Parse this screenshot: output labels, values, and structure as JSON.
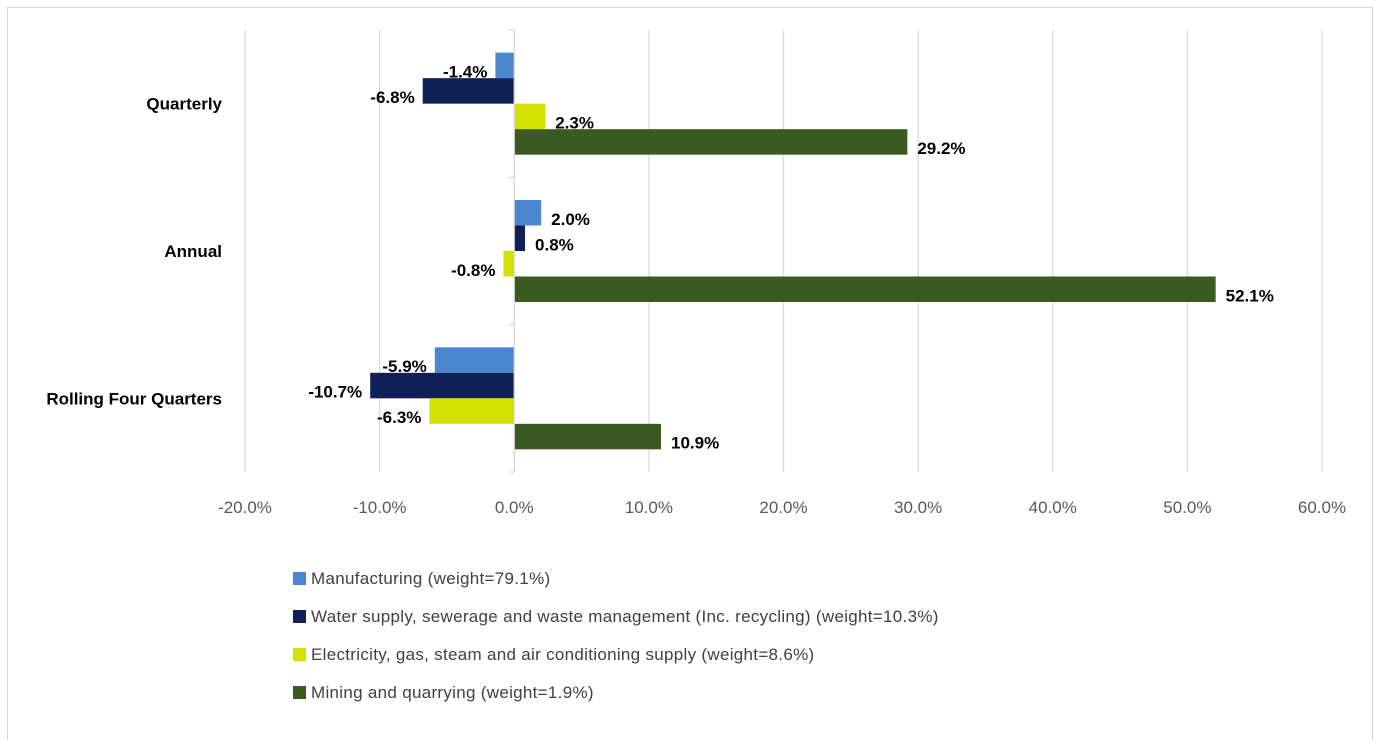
{
  "chart_data": {
    "type": "bar",
    "orientation": "horizontal",
    "categories": [
      "Quarterly",
      "Annual",
      "Rolling Four Quarters"
    ],
    "series": [
      {
        "name": "Manufacturing (weight=79.1%)",
        "color": "#4a86d0",
        "values": [
          -1.4,
          2.0,
          -5.9
        ],
        "labels": [
          "-1.4%",
          "2.0%",
          "-5.9%"
        ]
      },
      {
        "name": "Water supply, sewerage and waste management (Inc. recycling) (weight=10.3%)",
        "color": "#0f2056",
        "values": [
          -6.8,
          0.8,
          -10.7
        ],
        "labels": [
          "-6.8%",
          "0.8%",
          "-10.7%"
        ]
      },
      {
        "name": "Electricity, gas, steam and air conditioning supply (weight=8.6%)",
        "color": "#d4e000",
        "values": [
          2.3,
          -0.8,
          -6.3
        ],
        "labels": [
          "2.3%",
          "-0.8%",
          "-6.3%"
        ]
      },
      {
        "name": "Mining and quarrying (weight=1.9%)",
        "color": "#3a5a22",
        "values": [
          29.2,
          52.1,
          10.9
        ],
        "labels": [
          "29.2%",
          "52.1%",
          "10.9%"
        ]
      }
    ],
    "xlim": [
      -20,
      60
    ],
    "xticks": [
      "-20.0%",
      "-10.0%",
      "0.0%",
      "10.0%",
      "20.0%",
      "30.0%",
      "40.0%",
      "50.0%",
      "60.0%"
    ],
    "grid": true,
    "legend_position": "bottom"
  }
}
